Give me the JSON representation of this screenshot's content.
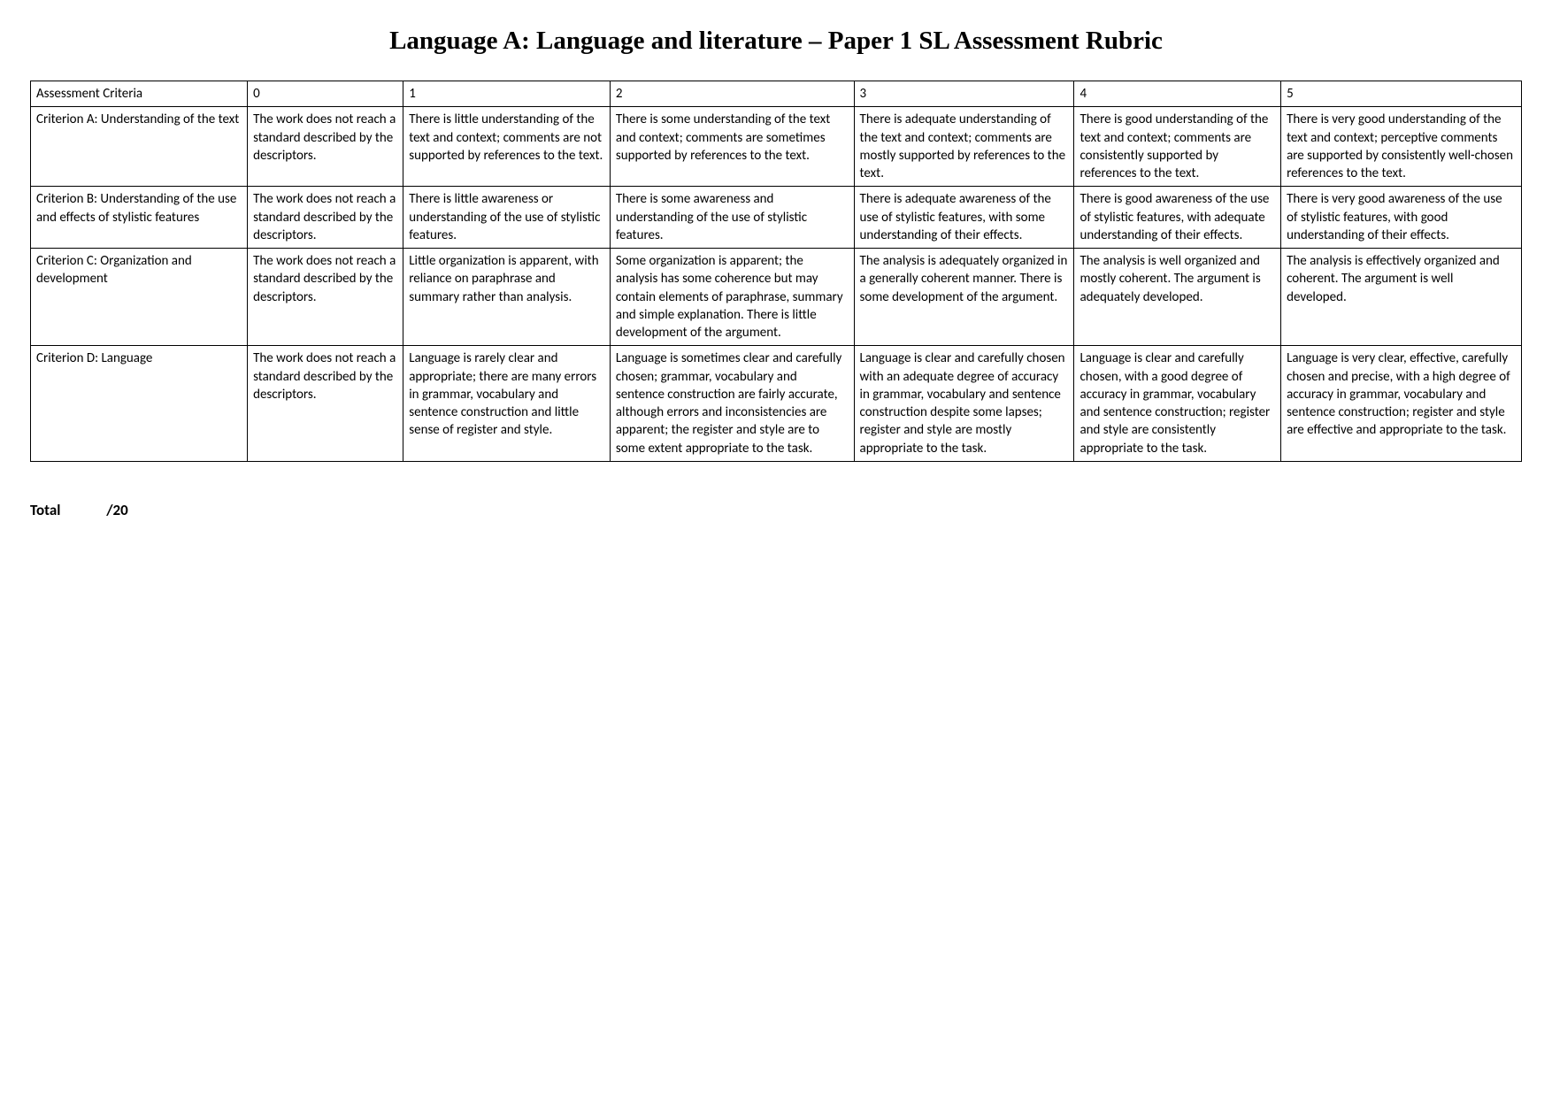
{
  "title": "Language A: Language and literature – Paper 1 SL Assessment Rubric",
  "headers": {
    "criteria": "Assessment Criteria",
    "c0": "0",
    "c1": "1",
    "c2": "2",
    "c3": "3",
    "c4": "4",
    "c5": "5"
  },
  "rows": [
    {
      "label": "Criterion A: Understanding of the text",
      "c0": "The work does not reach a standard described by the descriptors.",
      "c1": "There is little understanding of the text and context; comments are not supported by references to the text.",
      "c2": "There is some understanding of the text and context; comments are sometimes supported by references to the text.",
      "c3": "There is adequate understanding of the text and context; comments are mostly supported by references to the text.",
      "c4": "There is good understanding of the text and context; comments are consistently supported by references to the text.",
      "c5": "There is very good understanding of the text and context; perceptive comments are supported by consistently well-chosen references to the text."
    },
    {
      "label": "Criterion B: Understanding of the use and effects of stylistic features",
      "c0": "The work does not reach a standard described by the descriptors.",
      "c1": "There is little awareness or understanding of the use of stylistic features.",
      "c2": "There is some awareness and understanding of the use of stylistic features.",
      "c3": "There is adequate awareness of the use of stylistic features, with some understanding of their effects.",
      "c4": "There is good awareness of the use of stylistic features, with adequate understanding of their effects.",
      "c5": "There is very good awareness of the use of stylistic features, with good understanding of their effects."
    },
    {
      "label": "Criterion C: Organization and development",
      "c0": "The work does not reach a standard described by the descriptors.",
      "c1": "Little organization is apparent, with reliance on paraphrase and summary rather than analysis.",
      "c2": "Some organization is apparent; the analysis has some coherence but may contain elements of paraphrase, summary and simple explanation. There is little development of the argument.",
      "c3": "The analysis is adequately organized in a generally coherent manner. There is some development of the argument.",
      "c4": "The analysis is well organized and mostly coherent. The argument is adequately developed.",
      "c5": "The analysis is effectively organized and coherent. The argument is well developed."
    },
    {
      "label": "Criterion D: Language",
      "c0": "The work does not reach a standard described by the descriptors.",
      "c1": "Language is rarely clear and appropriate; there are many errors in grammar, vocabulary and sentence construction and little sense of register and style.",
      "c2": "Language is sometimes clear and carefully chosen; grammar, vocabulary and sentence construction are fairly accurate, although errors and inconsistencies are apparent; the register and style are to some extent appropriate to the task.",
      "c3": "Language is clear and carefully chosen with an adequate degree of accuracy in grammar, vocabulary and sentence construction despite some lapses; register and style are mostly appropriate to the task.",
      "c4": "Language is clear and carefully chosen, with a good degree of accuracy in grammar, vocabulary and sentence construction; register and style are consistently appropriate to the task.",
      "c5": "Language is very clear, effective, carefully chosen and precise, with a high degree of accuracy in grammar, vocabulary and sentence construction; register and style are effective and appropriate to the task."
    }
  ],
  "total": {
    "label": "Total",
    "value": "/20"
  }
}
